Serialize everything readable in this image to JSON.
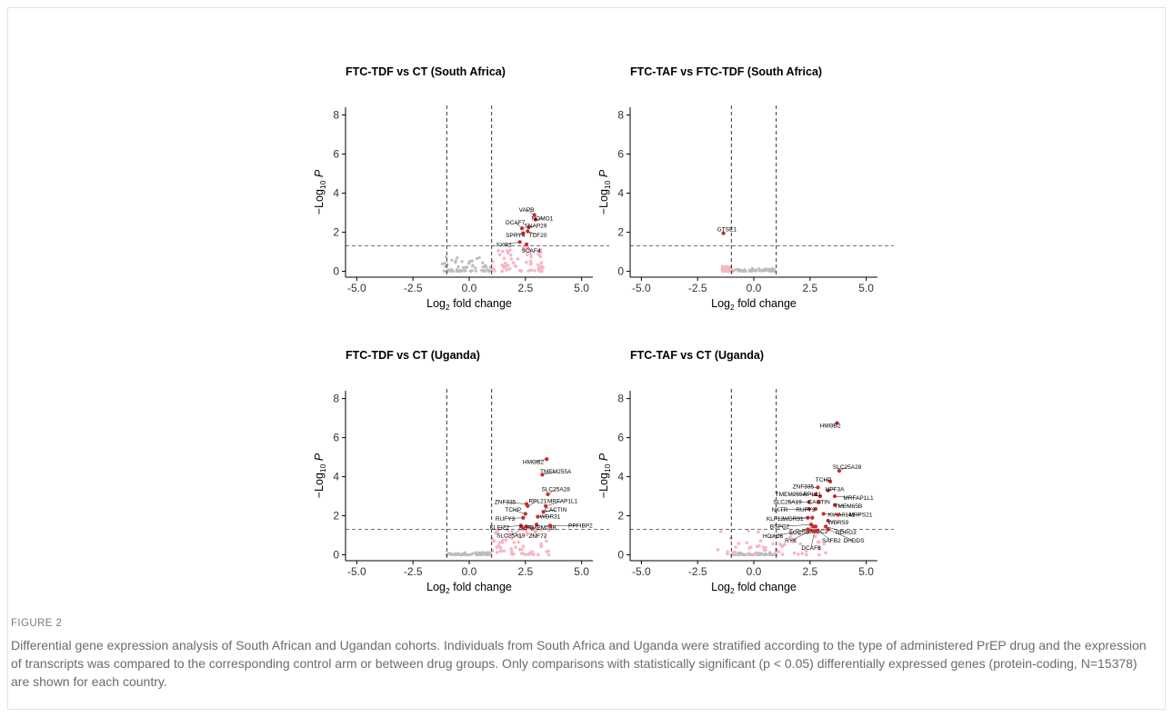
{
  "figure": {
    "label": "FIGURE 2",
    "caption": "Differential gene expression analysis of South African and Ugandan cohorts. Individuals from South Africa and Uganda were stratified according to the type of administered PrEP drug and the expression of transcripts was compared to the corresponding control arm or between drug groups. Only comparisons with statistically significant (p < 0.05) differentially expressed genes (protein-coding, N=15378) are shown for each country."
  },
  "colors": {
    "significant": "#c62a2a",
    "fold_only": "#f7b6c4",
    "ns": "#bdbdbd",
    "axis": "#000000"
  },
  "chart_data": [
    {
      "type": "scatter",
      "title": "FTC-TDF vs CT (South Africa)",
      "xlabel_main": "Log",
      "xlabel_sub": "2",
      "xlabel_rest": " fold change",
      "ylabel_main": "−Log",
      "ylabel_sub": "10",
      "ylabel_rest": "P",
      "xlim": [
        -5.5,
        5.5
      ],
      "ylim": [
        -0.3,
        8.4
      ],
      "xticks": [
        "-5.0",
        "-2.5",
        "0.0",
        "2.5",
        "5.0"
      ],
      "xtick_values": [
        -5,
        -2.5,
        0,
        2.5,
        5
      ],
      "yticks": [
        "0",
        "2",
        "4",
        "6",
        "8"
      ],
      "ytick_values": [
        0,
        2,
        4,
        6,
        8
      ],
      "fc_cutoff": 1,
      "p_cutoff_line": 1.3,
      "background": {
        "gray_range": [
          -1.2,
          1.0
        ],
        "pink_range": [
          1.0,
          3.3
        ],
        "pink_max_y": 1.25,
        "gray_max_y": 0.85
      },
      "points": [
        {
          "label": "VAPB",
          "x": 2.9,
          "y": 2.88,
          "lx": 2.55,
          "ly": 3.15
        },
        {
          "label": "NOMO1",
          "x": 2.95,
          "y": 2.65,
          "lx": 3.25,
          "ly": 2.7
        },
        {
          "label": "SNAP29",
          "x": 2.65,
          "y": 2.25,
          "lx": 2.95,
          "ly": 2.32
        },
        {
          "label": "DCAF7",
          "x": 2.35,
          "y": 2.2,
          "lx": 2.05,
          "ly": 2.48
        },
        {
          "label": "TCF20",
          "x": 2.6,
          "y": 2.05,
          "lx": 3.05,
          "ly": 1.85
        },
        {
          "label": "SPRY4",
          "x": 2.4,
          "y": 1.95,
          "lx": 2.05,
          "ly": 1.85
        },
        {
          "label": "FXR2",
          "x": 2.25,
          "y": 1.5,
          "lx": 1.55,
          "ly": 1.35
        },
        {
          "label": "SCAF4",
          "x": 2.55,
          "y": 1.38,
          "lx": 2.75,
          "ly": 1.05
        }
      ]
    },
    {
      "type": "scatter",
      "title": "FTC-TAF vs FTC-TDF (South Africa)",
      "xlabel_main": "Log",
      "xlabel_sub": "2",
      "xlabel_rest": " fold change",
      "ylabel_main": "−Log",
      "ylabel_sub": "10",
      "ylabel_rest": "P",
      "xlim": [
        -5.5,
        5.5
      ],
      "ylim": [
        -0.3,
        8.4
      ],
      "xticks": [
        "-5.0",
        "-2.5",
        "0.0",
        "2.5",
        "5.0"
      ],
      "xtick_values": [
        -5,
        -2.5,
        0,
        2.5,
        5
      ],
      "yticks": [
        "0",
        "2",
        "4",
        "6",
        "8"
      ],
      "ytick_values": [
        0,
        2,
        4,
        6,
        8
      ],
      "fc_cutoff": 1,
      "p_cutoff_line": 1.3,
      "background": {
        "gray_range": [
          -1.0,
          1.0
        ],
        "pink_range": [
          -1.4,
          -1.0
        ],
        "pink_max_y": 0.25,
        "gray_max_y": 0.15
      },
      "points": [
        {
          "label": "GTSE1",
          "x": -1.35,
          "y": 1.95,
          "lx": -1.2,
          "ly": 2.15
        }
      ]
    },
    {
      "type": "scatter",
      "title": "FTC-TDF vs CT (Uganda)",
      "xlabel_main": "Log",
      "xlabel_sub": "2",
      "xlabel_rest": " fold change",
      "ylabel_main": "−Log",
      "ylabel_sub": "10",
      "ylabel_rest": "P",
      "xlim": [
        -5.5,
        5.5
      ],
      "ylim": [
        -0.3,
        8.4
      ],
      "xticks": [
        "-5.0",
        "-2.5",
        "0.0",
        "2.5",
        "5.0"
      ],
      "xtick_values": [
        -5,
        -2.5,
        0,
        2.5,
        5
      ],
      "yticks": [
        "0",
        "2",
        "4",
        "6",
        "8"
      ],
      "ytick_values": [
        0,
        2,
        4,
        6,
        8
      ],
      "fc_cutoff": 1,
      "p_cutoff_line": 1.3,
      "background": {
        "gray_range": [
          -1.0,
          1.0
        ],
        "pink_range": [
          1.0,
          3.6
        ],
        "pink_max_y": 1.3,
        "gray_max_y": 0.12
      },
      "points": [
        {
          "label": "HMGB2",
          "x": 3.45,
          "y": 4.9,
          "lx": 2.85,
          "ly": 4.75
        },
        {
          "label": "TMEM255A",
          "x": 3.25,
          "y": 4.1,
          "lx": 3.85,
          "ly": 4.25
        },
        {
          "label": "SLC25A28",
          "x": 3.5,
          "y": 3.1,
          "lx": 3.85,
          "ly": 3.35
        },
        {
          "label": "ZNF335",
          "x": 2.55,
          "y": 2.6,
          "lx": 1.6,
          "ly": 2.7
        },
        {
          "label": "RPL21",
          "x": 2.6,
          "y": 2.5,
          "lx": 3.05,
          "ly": 2.75
        },
        {
          "label": "MRFAP1L1",
          "x": 3.4,
          "y": 2.5,
          "lx": 4.15,
          "ly": 2.75
        },
        {
          "label": "CACTIN",
          "x": 3.3,
          "y": 2.2,
          "lx": 3.85,
          "ly": 2.3
        },
        {
          "label": "TCHP",
          "x": 2.5,
          "y": 2.1,
          "lx": 1.95,
          "ly": 2.3
        },
        {
          "label": "WDR31",
          "x": 3.05,
          "y": 1.95,
          "lx": 3.6,
          "ly": 1.95
        },
        {
          "label": "RUFY3",
          "x": 2.4,
          "y": 1.9,
          "lx": 1.6,
          "ly": 1.85
        },
        {
          "label": "TMEM59B",
          "x": 3.0,
          "y": 1.55,
          "lx": 3.25,
          "ly": 1.4
        },
        {
          "label": "PPFIBP2",
          "x": 3.6,
          "y": 1.5,
          "lx": 4.95,
          "ly": 1.5
        },
        {
          "label": "KLEIZ2",
          "x": 2.3,
          "y": 1.5,
          "lx": 1.35,
          "ly": 1.4
        },
        {
          "label": "PGK",
          "x": 2.55,
          "y": 1.45,
          "lx": 2.5,
          "ly": 1.4
        },
        {
          "label": "SLC25A19",
          "x": 2.4,
          "y": 1.35,
          "lx": 1.85,
          "ly": 0.98
        },
        {
          "label": "ZNF77",
          "x": 2.8,
          "y": 1.35,
          "lx": 3.05,
          "ly": 0.95
        }
      ]
    },
    {
      "type": "scatter",
      "title": "FTC-TAF vs CT (Uganda)",
      "xlabel_main": "Log",
      "xlabel_sub": "2",
      "xlabel_rest": " fold change",
      "ylabel_main": "−Log",
      "ylabel_sub": "10",
      "ylabel_rest": "P",
      "xlim": [
        -5.5,
        5.5
      ],
      "ylim": [
        -0.3,
        8.4
      ],
      "xticks": [
        "-5.0",
        "-2.5",
        "0.0",
        "2.5",
        "5.0"
      ],
      "xtick_values": [
        -5,
        -2.5,
        0,
        2.5,
        5
      ],
      "yticks": [
        "0",
        "2",
        "4",
        "6",
        "8"
      ],
      "ytick_values": [
        0,
        2,
        4,
        6,
        8
      ],
      "fc_cutoff": 1,
      "p_cutoff_line": 1.3,
      "background": {
        "gray_range": [
          -1.0,
          1.0
        ],
        "pink_range": [
          -1.6,
          3.2
        ],
        "pink_max_y": 1.3,
        "gray_max_y": 0.12
      },
      "points": [
        {
          "label": "HMGB2",
          "x": 3.7,
          "y": 6.75,
          "lx": 3.4,
          "ly": 6.6
        },
        {
          "label": "SLC25A28",
          "x": 3.8,
          "y": 4.3,
          "lx": 4.15,
          "ly": 4.5
        },
        {
          "label": "TCHP",
          "x": 3.4,
          "y": 3.75,
          "lx": 3.1,
          "ly": 3.85
        },
        {
          "label": "ZNF335",
          "x": 2.85,
          "y": 3.45,
          "lx": 2.2,
          "ly": 3.5
        },
        {
          "label": "UPF3A",
          "x": 3.3,
          "y": 3.3,
          "lx": 3.6,
          "ly": 3.35
        },
        {
          "label": "TMEM255A",
          "x": 2.75,
          "y": 3.1,
          "lx": 1.65,
          "ly": 3.1
        },
        {
          "label": "RPL21",
          "x": 2.95,
          "y": 3.0,
          "lx": 2.6,
          "ly": 3.1
        },
        {
          "label": "MRFAP1L1",
          "x": 3.6,
          "y": 3.0,
          "lx": 4.65,
          "ly": 2.9
        },
        {
          "label": "SLC25A19",
          "x": 2.45,
          "y": 2.7,
          "lx": 1.5,
          "ly": 2.7
        },
        {
          "label": "CACTIN",
          "x": 2.9,
          "y": 2.7,
          "lx": 2.9,
          "ly": 2.7
        },
        {
          "label": "TMEM65B",
          "x": 3.6,
          "y": 2.55,
          "lx": 4.2,
          "ly": 2.5
        },
        {
          "label": "NKTR",
          "x": 2.45,
          "y": 2.35,
          "lx": 1.15,
          "ly": 2.3
        },
        {
          "label": "RUFY3",
          "x": 2.75,
          "y": 2.35,
          "lx": 2.3,
          "ly": 2.3
        },
        {
          "label": "KIAA0141",
          "x": 3.1,
          "y": 2.1,
          "lx": 3.9,
          "ly": 2.05
        },
        {
          "label": "MRPS21",
          "x": 3.75,
          "y": 2.05,
          "lx": 4.75,
          "ly": 2.05
        },
        {
          "label": "KLF12",
          "x": 2.4,
          "y": 1.9,
          "lx": 0.95,
          "ly": 1.85
        },
        {
          "label": "WDR31",
          "x": 2.6,
          "y": 1.9,
          "lx": 1.75,
          "ly": 1.85
        },
        {
          "label": "WDR59",
          "x": 3.3,
          "y": 1.75,
          "lx": 3.75,
          "ly": 1.65
        },
        {
          "label": "BSPC2",
          "x": 2.55,
          "y": 1.55,
          "lx": 1.15,
          "ly": 1.45
        },
        {
          "label": "SOCS6",
          "x": 2.65,
          "y": 1.45,
          "lx": 2.0,
          "ly": 1.15
        },
        {
          "label": "ERCC2",
          "x": 2.75,
          "y": 1.45,
          "lx": 2.85,
          "ly": 1.2
        },
        {
          "label": "NDRG3",
          "x": 3.2,
          "y": 1.45,
          "lx": 4.1,
          "ly": 1.15
        },
        {
          "label": "HOXC6",
          "x": 2.4,
          "y": 1.3,
          "lx": 0.85,
          "ly": 0.95
        },
        {
          "label": "RYK",
          "x": 2.55,
          "y": 1.25,
          "lx": 1.65,
          "ly": 0.72
        },
        {
          "label": "SAFB2",
          "x": 2.85,
          "y": 1.25,
          "lx": 3.45,
          "ly": 0.72
        },
        {
          "label": "DHDDS",
          "x": 3.3,
          "y": 1.3,
          "lx": 4.45,
          "ly": 0.72
        },
        {
          "label": "DCAF8",
          "x": 2.7,
          "y": 1.2,
          "lx": 2.55,
          "ly": 0.35
        }
      ]
    }
  ]
}
